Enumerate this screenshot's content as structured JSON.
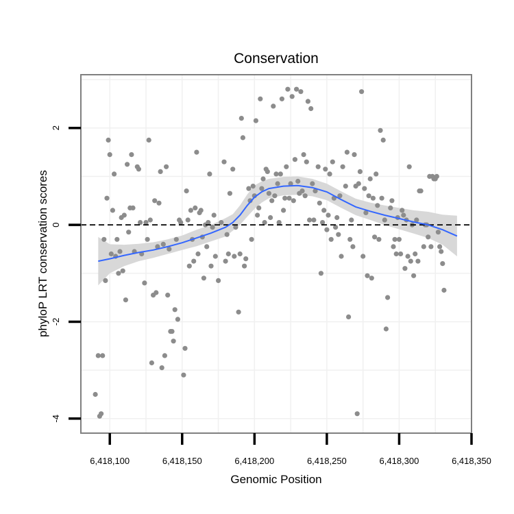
{
  "chart_data": {
    "type": "scatter",
    "title": "Conservation",
    "xlabel": "Genomic Position",
    "ylabel": "phyloP LRT conservation scores",
    "xlim": [
      6418080,
      6418350
    ],
    "ylim": [
      -4.3,
      3.1
    ],
    "x_ticks": [
      6418100,
      6418150,
      6418200,
      6418250,
      6418300,
      6418350
    ],
    "x_tick_labels": [
      "6,418,100",
      "6,418,150",
      "6,418,200",
      "6,418,250",
      "6,418,300",
      "6,418,350"
    ],
    "y_ticks": [
      -4,
      -2,
      0,
      2
    ],
    "y_tick_labels": [
      "-4",
      "-2",
      "0",
      "2"
    ],
    "reference_line": {
      "y": 0,
      "style": "dashed"
    },
    "grid": true,
    "colors": {
      "points": "#8c8c8c",
      "smooth": "#3366ff",
      "ribbon": "#d6d6d6",
      "reference": "#000000",
      "panel_border": "#7f7f7f",
      "grid": "#f0f0f0"
    },
    "smooth": {
      "x": [
        6418092,
        6418100,
        6418110,
        6418120,
        6418130,
        6418140,
        6418150,
        6418160,
        6418170,
        6418180,
        6418185,
        6418190,
        6418195,
        6418200,
        6418205,
        6418210,
        6418220,
        6418230,
        6418240,
        6418250,
        6418260,
        6418270,
        6418280,
        6418290,
        6418300,
        6418310,
        6418320,
        6418330,
        6418340
      ],
      "y": [
        -0.75,
        -0.7,
        -0.63,
        -0.57,
        -0.52,
        -0.45,
        -0.37,
        -0.27,
        -0.17,
        -0.05,
        0.05,
        0.2,
        0.4,
        0.57,
        0.68,
        0.75,
        0.8,
        0.81,
        0.77,
        0.68,
        0.52,
        0.37,
        0.28,
        0.2,
        0.13,
        0.06,
        0.0,
        -0.1,
        -0.23
      ],
      "lower": [
        -1.25,
        -1.0,
        -0.85,
        -0.75,
        -0.68,
        -0.6,
        -0.52,
        -0.44,
        -0.34,
        -0.24,
        -0.12,
        0.0,
        0.17,
        0.33,
        0.46,
        0.55,
        0.61,
        0.62,
        0.59,
        0.51,
        0.35,
        0.2,
        0.1,
        0.0,
        -0.09,
        -0.18,
        -0.27,
        -0.41,
        -0.65
      ],
      "upper": [
        -0.25,
        -0.4,
        -0.41,
        -0.39,
        -0.36,
        -0.3,
        -0.22,
        -0.1,
        0.0,
        0.14,
        0.22,
        0.4,
        0.63,
        0.81,
        0.9,
        0.95,
        0.99,
        1.0,
        0.95,
        0.85,
        0.69,
        0.54,
        0.46,
        0.4,
        0.35,
        0.3,
        0.27,
        0.21,
        0.19
      ]
    },
    "points": [
      [
        6418090,
        -3.5
      ],
      [
        6418092,
        -2.7
      ],
      [
        6418093,
        -3.95
      ],
      [
        6418094,
        -3.9
      ],
      [
        6418095,
        -2.7
      ],
      [
        6418096,
        -0.3
      ],
      [
        6418097,
        -1.15
      ],
      [
        6418098,
        0.55
      ],
      [
        6418099,
        1.75
      ],
      [
        6418100,
        1.45
      ],
      [
        6418101,
        -0.6
      ],
      [
        6418102,
        0.3
      ],
      [
        6418103,
        1.05
      ],
      [
        6418104,
        -0.65
      ],
      [
        6418105,
        -0.3
      ],
      [
        6418106,
        -1.0
      ],
      [
        6418107,
        -0.55
      ],
      [
        6418108,
        0.15
      ],
      [
        6418109,
        -0.95
      ],
      [
        6418110,
        0.2
      ],
      [
        6418111,
        -1.55
      ],
      [
        6418112,
        1.25
      ],
      [
        6418113,
        -0.15
      ],
      [
        6418114,
        0.35
      ],
      [
        6418115,
        1.45
      ],
      [
        6418116,
        0.35
      ],
      [
        6418117,
        -0.55
      ],
      [
        6418119,
        1.2
      ],
      [
        6418120,
        1.15
      ],
      [
        6418121,
        0.05
      ],
      [
        6418122,
        -0.6
      ],
      [
        6418124,
        -1.2
      ],
      [
        6418125,
        0.05
      ],
      [
        6418126,
        -0.3
      ],
      [
        6418127,
        1.75
      ],
      [
        6418128,
        0.1
      ],
      [
        6418129,
        -2.85
      ],
      [
        6418130,
        -1.45
      ],
      [
        6418131,
        0.5
      ],
      [
        6418132,
        -1.4
      ],
      [
        6418133,
        -0.45
      ],
      [
        6418134,
        0.45
      ],
      [
        6418135,
        1.1
      ],
      [
        6418136,
        -2.95
      ],
      [
        6418137,
        -0.4
      ],
      [
        6418138,
        -2.7
      ],
      [
        6418139,
        1.2
      ],
      [
        6418140,
        -1.45
      ],
      [
        6418141,
        -0.5
      ],
      [
        6418142,
        -2.2
      ],
      [
        6418143,
        -2.2
      ],
      [
        6418144,
        -2.4
      ],
      [
        6418145,
        -1.75
      ],
      [
        6418146,
        -0.3
      ],
      [
        6418147,
        -1.95
      ],
      [
        6418148,
        0.1
      ],
      [
        6418149,
        0.05
      ],
      [
        6418151,
        -3.1
      ],
      [
        6418152,
        -2.55
      ],
      [
        6418153,
        0.7
      ],
      [
        6418154,
        0.1
      ],
      [
        6418155,
        -0.85
      ],
      [
        6418156,
        0.3
      ],
      [
        6418157,
        -0.3
      ],
      [
        6418158,
        -0.75
      ],
      [
        6418159,
        0.35
      ],
      [
        6418160,
        1.5
      ],
      [
        6418161,
        -0.6
      ],
      [
        6418162,
        0.25
      ],
      [
        6418163,
        0.3
      ],
      [
        6418164,
        -0.25
      ],
      [
        6418165,
        -1.1
      ],
      [
        6418166,
        0.0
      ],
      [
        6418167,
        -0.45
      ],
      [
        6418168,
        0.05
      ],
      [
        6418169,
        1.05
      ],
      [
        6418170,
        -0.85
      ],
      [
        6418171,
        -0.05
      ],
      [
        6418172,
        0.2
      ],
      [
        6418173,
        -0.65
      ],
      [
        6418175,
        -1.15
      ],
      [
        6418177,
        0.05
      ],
      [
        6418179,
        1.3
      ],
      [
        6418180,
        -0.75
      ],
      [
        6418181,
        -0.2
      ],
      [
        6418182,
        -0.6
      ],
      [
        6418183,
        0.65
      ],
      [
        6418185,
        1.15
      ],
      [
        6418186,
        -0.65
      ],
      [
        6418187,
        -0.05
      ],
      [
        6418189,
        -1.8
      ],
      [
        6418190,
        -0.6
      ],
      [
        6418191,
        2.2
      ],
      [
        6418192,
        1.8
      ],
      [
        6418193,
        -0.85
      ],
      [
        6418194,
        -0.7
      ],
      [
        6418196,
        0.75
      ],
      [
        6418197,
        0.5
      ],
      [
        6418198,
        -0.3
      ],
      [
        6418199,
        0.8
      ],
      [
        6418200,
        0.6
      ],
      [
        6418201,
        2.15
      ],
      [
        6418202,
        0.2
      ],
      [
        6418203,
        0.35
      ],
      [
        6418204,
        2.6
      ],
      [
        6418205,
        0.75
      ],
      [
        6418206,
        0.95
      ],
      [
        6418207,
        0.05
      ],
      [
        6418208,
        1.15
      ],
      [
        6418209,
        1.1
      ],
      [
        6418210,
        0.65
      ],
      [
        6418211,
        0.15
      ],
      [
        6418212,
        0.5
      ],
      [
        6418213,
        2.45
      ],
      [
        6418214,
        0.6
      ],
      [
        6418215,
        1.05
      ],
      [
        6418216,
        0.85
      ],
      [
        6418217,
        0.05
      ],
      [
        6418218,
        1.05
      ],
      [
        6418219,
        2.6
      ],
      [
        6418220,
        0.3
      ],
      [
        6418221,
        0.55
      ],
      [
        6418222,
        1.2
      ],
      [
        6418223,
        2.8
      ],
      [
        6418224,
        0.55
      ],
      [
        6418225,
        0.85
      ],
      [
        6418226,
        2.65
      ],
      [
        6418227,
        0.5
      ],
      [
        6418228,
        1.35
      ],
      [
        6418229,
        2.8
      ],
      [
        6418230,
        0.9
      ],
      [
        6418231,
        0.65
      ],
      [
        6418232,
        2.75
      ],
      [
        6418233,
        0.7
      ],
      [
        6418234,
        1.45
      ],
      [
        6418235,
        0.6
      ],
      [
        6418236,
        1.3
      ],
      [
        6418237,
        2.55
      ],
      [
        6418238,
        0.1
      ],
      [
        6418239,
        2.4
      ],
      [
        6418240,
        0.85
      ],
      [
        6418241,
        0.1
      ],
      [
        6418242,
        0.7
      ],
      [
        6418244,
        1.2
      ],
      [
        6418245,
        0.45
      ],
      [
        6418246,
        -1.0
      ],
      [
        6418247,
        0.05
      ],
      [
        6418248,
        0.3
      ],
      [
        6418249,
        1.15
      ],
      [
        6418250,
        -0.1
      ],
      [
        6418251,
        0.2
      ],
      [
        6418252,
        1.05
      ],
      [
        6418253,
        -0.3
      ],
      [
        6418254,
        1.3
      ],
      [
        6418255,
        0.55
      ],
      [
        6418256,
        -0.05
      ],
      [
        6418257,
        0.15
      ],
      [
        6418258,
        -0.2
      ],
      [
        6418259,
        0.6
      ],
      [
        6418260,
        -0.65
      ],
      [
        6418261,
        1.2
      ],
      [
        6418263,
        0.8
      ],
      [
        6418264,
        1.5
      ],
      [
        6418265,
        -1.9
      ],
      [
        6418266,
        -0.3
      ],
      [
        6418267,
        0.1
      ],
      [
        6418268,
        -0.45
      ],
      [
        6418269,
        1.45
      ],
      [
        6418270,
        0.8
      ],
      [
        6418271,
        -3.9
      ],
      [
        6418272,
        0.85
      ],
      [
        6418273,
        1.1
      ],
      [
        6418274,
        2.75
      ],
      [
        6418275,
        -0.65
      ],
      [
        6418276,
        0.75
      ],
      [
        6418277,
        0.25
      ],
      [
        6418278,
        -1.05
      ],
      [
        6418279,
        0.6
      ],
      [
        6418280,
        0.95
      ],
      [
        6418281,
        -1.1
      ],
      [
        6418282,
        0.55
      ],
      [
        6418283,
        -0.25
      ],
      [
        6418284,
        1.05
      ],
      [
        6418285,
        0.4
      ],
      [
        6418286,
        -0.3
      ],
      [
        6418287,
        1.95
      ],
      [
        6418288,
        0.55
      ],
      [
        6418289,
        1.75
      ],
      [
        6418290,
        0.1
      ],
      [
        6418291,
        -2.15
      ],
      [
        6418292,
        -1.5
      ],
      [
        6418294,
        0.35
      ],
      [
        6418295,
        0.5
      ],
      [
        6418296,
        -0.45
      ],
      [
        6418297,
        -0.3
      ],
      [
        6418298,
        -0.6
      ],
      [
        6418299,
        0.15
      ],
      [
        6418300,
        -0.3
      ],
      [
        6418301,
        -0.6
      ],
      [
        6418302,
        0.3
      ],
      [
        6418303,
        0.2
      ],
      [
        6418304,
        -0.9
      ],
      [
        6418305,
        0.1
      ],
      [
        6418306,
        -0.65
      ],
      [
        6418307,
        1.2
      ],
      [
        6418308,
        -0.75
      ],
      [
        6418309,
        0.0
      ],
      [
        6418310,
        -1.05
      ],
      [
        6418311,
        -0.6
      ],
      [
        6418312,
        0.1
      ],
      [
        6418313,
        -0.75
      ],
      [
        6418314,
        0.7
      ],
      [
        6418315,
        0.7
      ],
      [
        6418317,
        -0.45
      ],
      [
        6418318,
        0.0
      ],
      [
        6418319,
        0.0
      ],
      [
        6418320,
        -0.25
      ],
      [
        6418321,
        1.0
      ],
      [
        6418322,
        -0.45
      ],
      [
        6418323,
        1.0
      ],
      [
        6418324,
        0.95
      ],
      [
        6418325,
        0.95
      ],
      [
        6418326,
        1.0
      ],
      [
        6418327,
        -0.15
      ],
      [
        6418328,
        -0.45
      ],
      [
        6418329,
        -0.55
      ],
      [
        6418330,
        -0.8
      ],
      [
        6418331,
        -1.35
      ]
    ]
  }
}
